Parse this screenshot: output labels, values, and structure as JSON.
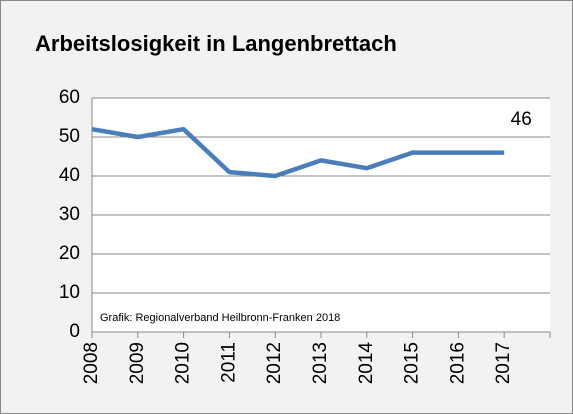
{
  "chart_data": {
    "type": "line",
    "title": "Arbeitslosigkeit in Langenbrettach",
    "categories": [
      "2008",
      "2009",
      "2010",
      "2011",
      "2012",
      "2013",
      "2014",
      "2015",
      "2016",
      "2017"
    ],
    "values": [
      52,
      50,
      52,
      41,
      40,
      44,
      42,
      46,
      46,
      46
    ],
    "color": "#4a7ebb",
    "ylim": [
      0,
      60
    ],
    "yticks": [
      0,
      10,
      20,
      30,
      40,
      50,
      60
    ],
    "grid": true,
    "annotation": "Grafik: Regionalverband Heilbronn-Franken 2018"
  }
}
